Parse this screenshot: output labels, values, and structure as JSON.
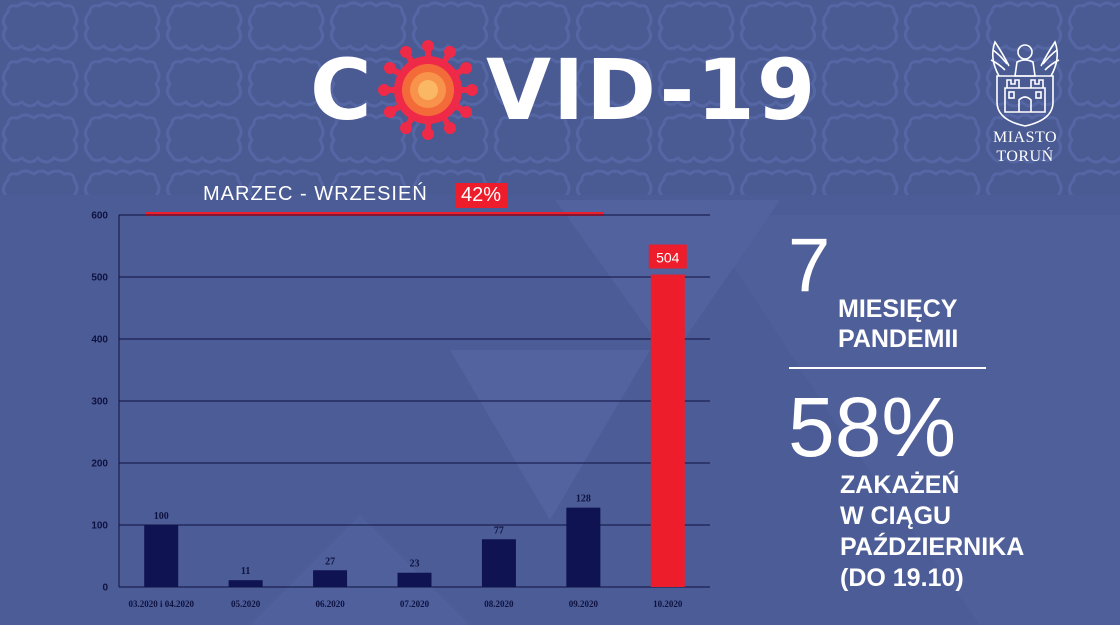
{
  "header": {
    "title_c": "C",
    "title_rest": "VID-19",
    "crest_line1": "MIASTO",
    "crest_line2": "TORUŃ"
  },
  "range": {
    "label": "MARZEC - WRZESIEŃ",
    "badge": "42%"
  },
  "side": {
    "months": "7",
    "months_label_1": "MIESIĘCY",
    "months_label_2": "PANDEMII",
    "percent": "58%",
    "percent_label_1": "ZAKAŻEŃ",
    "percent_label_2": "W CIĄGU",
    "percent_label_3": "PAŹDZIERNIKA",
    "percent_label_4": "(DO 19.10)"
  },
  "colors": {
    "background": "#4a5a93",
    "bar": "#0f1352",
    "highlight": "#ee1d2b",
    "text": "#ffffff"
  },
  "chart_data": {
    "type": "bar",
    "categories": [
      "03.2020 i 04.2020",
      "05.2020",
      "06.2020",
      "07.2020",
      "08.2020",
      "09.2020",
      "10.2020"
    ],
    "values": [
      100,
      11,
      27,
      23,
      77,
      128,
      504
    ],
    "value_labels": [
      "100",
      "11",
      "27",
      "23",
      "77",
      "128",
      "504"
    ],
    "highlight_index": 6,
    "ylim": [
      0,
      600
    ],
    "yticks": [
      0,
      100,
      200,
      300,
      400,
      500,
      600
    ],
    "grid": true,
    "title": "",
    "xlabel": "",
    "ylabel": ""
  }
}
